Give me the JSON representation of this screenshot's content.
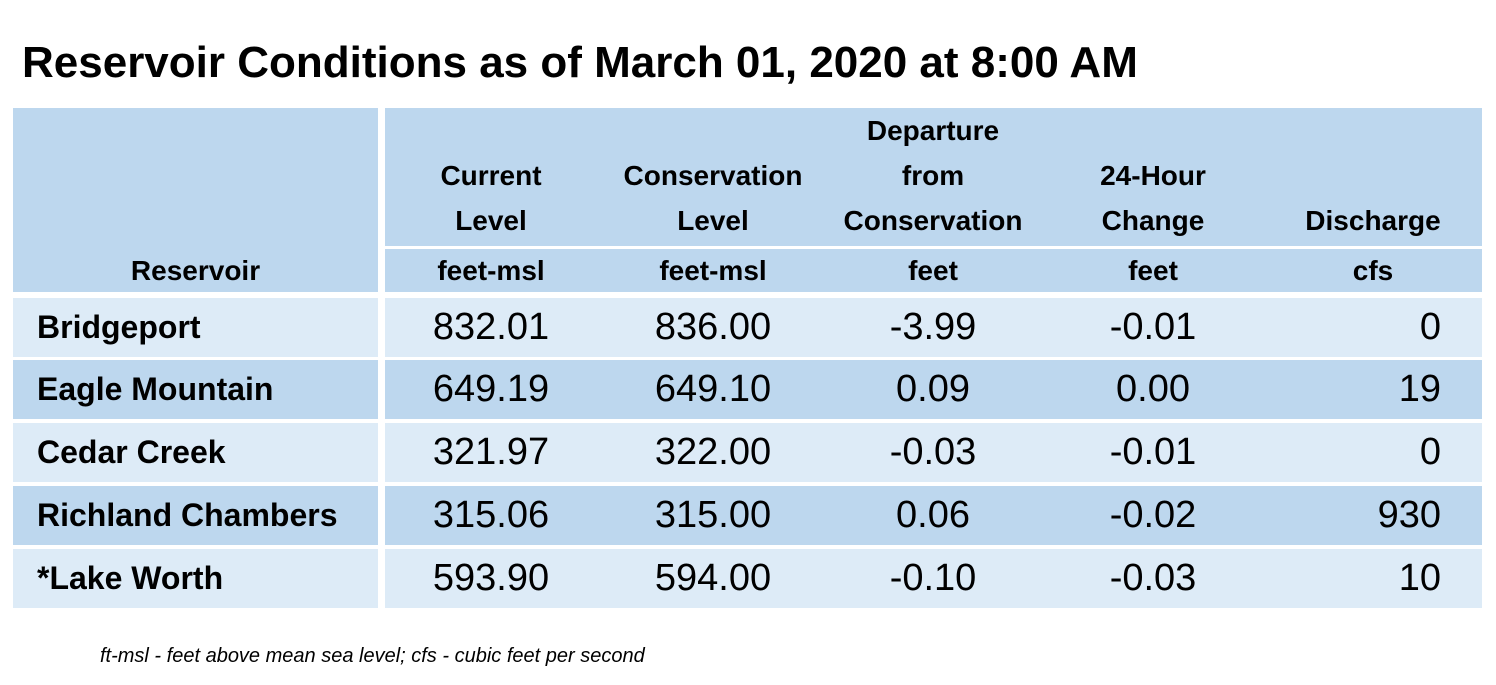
{
  "title": "Reservoir Conditions as of March 01, 2020 at 8:00 AM",
  "columns": {
    "reservoir": "Reservoir",
    "current": [
      "Current",
      "Level"
    ],
    "current_unit": "feet-msl",
    "conservation": [
      "Conservation",
      "Level"
    ],
    "conservation_unit": "feet-msl",
    "departure": [
      "Departure",
      "from",
      "Conservation"
    ],
    "departure_unit": "feet",
    "change": [
      "24-Hour",
      "Change"
    ],
    "change_unit": "feet",
    "discharge": [
      "Discharge"
    ],
    "discharge_unit": "cfs"
  },
  "rows": [
    {
      "name": "Bridgeport",
      "current": "832.01",
      "conservation": "836.00",
      "departure": "-3.99",
      "change": "-0.01",
      "discharge": "0"
    },
    {
      "name": "Eagle Mountain",
      "current": "649.19",
      "conservation": "649.10",
      "departure": "0.09",
      "change": "0.00",
      "discharge": "19"
    },
    {
      "name": "Cedar Creek",
      "current": "321.97",
      "conservation": "322.00",
      "departure": "-0.03",
      "change": "-0.01",
      "discharge": "0"
    },
    {
      "name": "Richland Chambers",
      "current": "315.06",
      "conservation": "315.00",
      "departure": "0.06",
      "change": "-0.02",
      "discharge": "930"
    },
    {
      "name": "*Lake Worth",
      "current": "593.90",
      "conservation": "594.00",
      "departure": "-0.10",
      "change": "-0.03",
      "discharge": "10"
    }
  ],
  "footnote": "ft-msl - feet above mean sea level; cfs - cubic feet per second",
  "colors": {
    "header": "#bdd7ee",
    "row_light": "#ddebf7",
    "row_dark": "#bdd7ee"
  }
}
